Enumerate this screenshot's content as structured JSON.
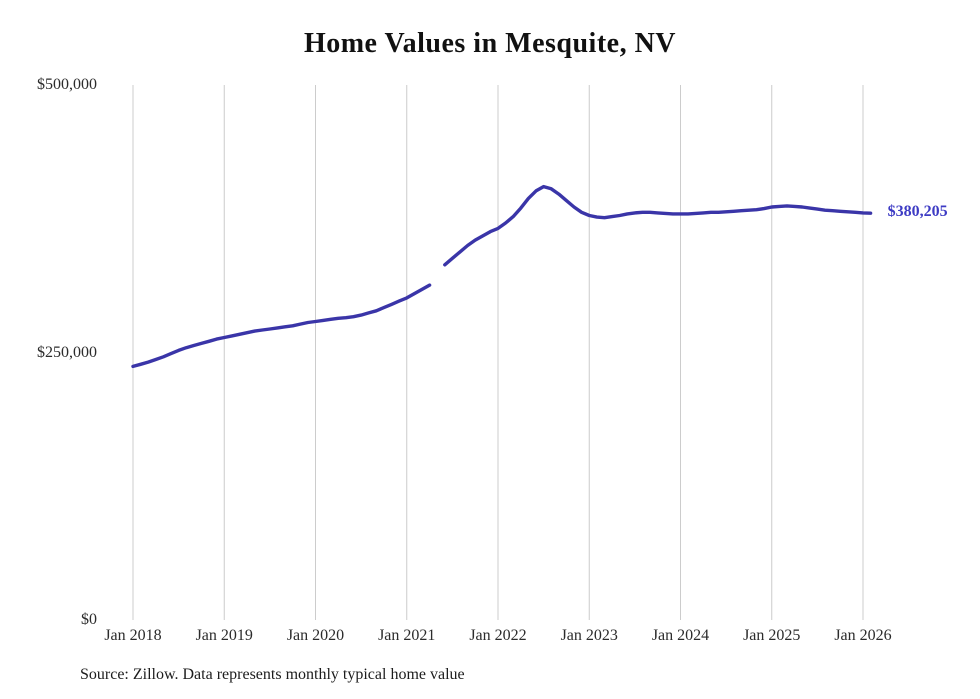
{
  "chart_data": {
    "type": "line",
    "title": "Home Values in Mesquite, NV",
    "source": "Source: Zillow. Data represents monthly typical home value",
    "end_label": "$380,205",
    "latest_value": 380205,
    "line_color": "#3a35a8",
    "end_label_color": "#3d3bc4",
    "grid_color": "#cccccc",
    "grid": "vertical-only",
    "legend": "none",
    "ylim": [
      0,
      500000
    ],
    "y_ticks": [
      {
        "value": 0,
        "label": "$0"
      },
      {
        "value": 250000,
        "label": "$250,000"
      },
      {
        "value": 500000,
        "label": "$500,000"
      }
    ],
    "x_ticks": [
      "Jan 2018",
      "Jan 2019",
      "Jan 2020",
      "Jan 2021",
      "Jan 2022",
      "Jan 2023",
      "Jan 2024",
      "Jan 2025",
      "Jan 2026"
    ],
    "series": [
      {
        "name": "Monthly typical home value",
        "x_monthly_start": "2018-01",
        "x_monthly_end": "2026-02",
        "note": "null value indicates visible gap/break in line around May 2021",
        "values": [
          237000,
          239000,
          241000,
          243500,
          246000,
          249000,
          252000,
          254500,
          256500,
          258500,
          260500,
          262500,
          264000,
          265500,
          267000,
          268500,
          270000,
          271000,
          272000,
          273000,
          274000,
          275000,
          276500,
          278000,
          279000,
          280000,
          281000,
          282000,
          282500,
          283500,
          285000,
          287000,
          289000,
          292000,
          295000,
          298000,
          301000,
          305000,
          309000,
          313000,
          null,
          332000,
          338000,
          344000,
          350000,
          355000,
          359000,
          363000,
          366000,
          371000,
          377000,
          385000,
          394000,
          401000,
          405000,
          403000,
          398000,
          392000,
          386000,
          381000,
          378000,
          376500,
          376000,
          377000,
          378000,
          379500,
          380500,
          381000,
          381000,
          380500,
          380000,
          379500,
          379500,
          379500,
          380000,
          380500,
          381000,
          381000,
          381500,
          382000,
          382500,
          383000,
          383500,
          384500,
          386000,
          386500,
          387000,
          386500,
          386000,
          385000,
          384000,
          383000,
          382500,
          382000,
          381500,
          381000,
          380500,
          380205
        ]
      }
    ]
  }
}
